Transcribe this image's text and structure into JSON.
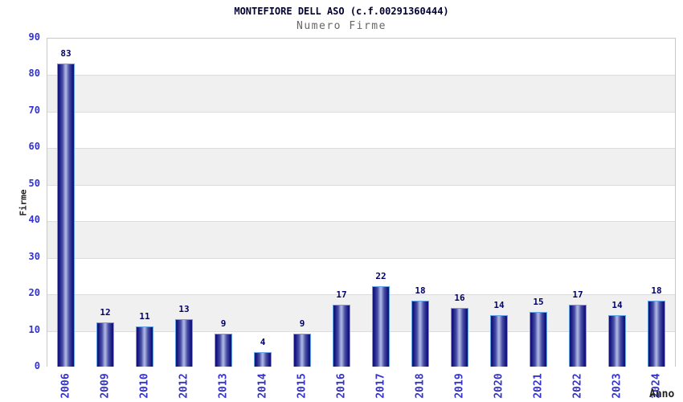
{
  "chart_data": {
    "type": "bar",
    "title": "MONTEFIORE DELL ASO (c.f.00291360444)",
    "subtitle": "Numero Firme",
    "xlabel": "Anno",
    "ylabel": "Firme",
    "categories": [
      "2006",
      "2009",
      "2010",
      "2012",
      "2013",
      "2014",
      "2015",
      "2016",
      "2017",
      "2018",
      "2019",
      "2020",
      "2021",
      "2022",
      "2023",
      "2024"
    ],
    "values": [
      83,
      12,
      11,
      13,
      9,
      4,
      9,
      17,
      22,
      18,
      16,
      14,
      15,
      17,
      14,
      18
    ],
    "ylim": [
      0,
      90
    ],
    "yticks": [
      0,
      10,
      20,
      30,
      40,
      50,
      60,
      70,
      80,
      90
    ],
    "grid": "alternating horizontal bands, ticks every 10",
    "legend": null,
    "value_labels": "above each bar",
    "colors": {
      "bar_edge": "#15157d",
      "bar_mid": "#4a50a8",
      "bar_center": "#a8b0de",
      "bar_outline": "#63a3e8",
      "tick_label": "#3333cc",
      "value_label": "#000066",
      "band_gray": "#f0f0f0",
      "gridline": "#dcdcdc",
      "plot_border": "#c8c8c8",
      "title": "#000033",
      "subtitle": "#666666",
      "axis_title": "#222222"
    }
  }
}
